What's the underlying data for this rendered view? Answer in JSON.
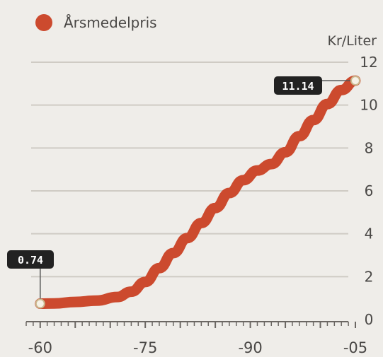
{
  "chart_data": {
    "type": "line",
    "legend": {
      "label": "Årsmedelpris",
      "color": "#cc4a2e",
      "placement": "top-left"
    },
    "y_unit": "Kr/Liter",
    "ylim": [
      0,
      12
    ],
    "y_ticks": [
      "0",
      "2",
      "4",
      "6",
      "8",
      "10",
      "12"
    ],
    "xlim": [
      1958,
      2005
    ],
    "x_ticks": [
      {
        "value": 1960,
        "label": "-60"
      },
      {
        "value": 1975,
        "label": "-75"
      },
      {
        "value": 1990,
        "label": "-90"
      },
      {
        "value": 2005,
        "label": "-05"
      }
    ],
    "grid": true,
    "series": [
      {
        "name": "Årsmedelpris",
        "color": "#cc4a2e",
        "x": [
          1960,
          1962,
          1965,
          1968,
          1971,
          1973,
          1975,
          1977,
          1979,
          1981,
          1983,
          1985,
          1987,
          1989,
          1991,
          1993,
          1995,
          1997,
          1999,
          2001,
          2003,
          2005
        ],
        "y": [
          0.74,
          0.75,
          0.82,
          0.88,
          1.05,
          1.3,
          1.75,
          2.4,
          3.1,
          3.8,
          4.5,
          5.2,
          5.9,
          6.5,
          6.95,
          7.25,
          7.8,
          8.55,
          9.3,
          10.05,
          10.7,
          11.14
        ]
      }
    ],
    "annotations": [
      {
        "x": 1960,
        "y": 0.74,
        "label": "0.74"
      },
      {
        "x": 2005,
        "y": 11.14,
        "label": "11.14"
      }
    ]
  }
}
